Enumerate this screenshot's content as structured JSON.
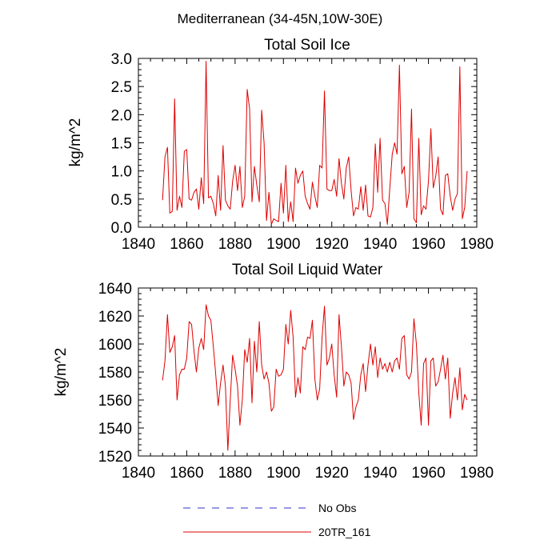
{
  "figure_title": "Mediterranean (34-45N,10W-30E)",
  "legend": [
    {
      "label": "No Obs",
      "color": "#3333cc",
      "style": "dashed"
    },
    {
      "label": "20TR_161",
      "color": "#dd0000",
      "style": "solid"
    }
  ],
  "chart_data": [
    {
      "type": "line",
      "title": "Total Soil Ice",
      "xlabel": "",
      "ylabel": "kg/m^2",
      "xlim": [
        1840,
        1980
      ],
      "ylim": [
        0.0,
        3.0
      ],
      "xticks": [
        1840,
        1860,
        1880,
        1900,
        1920,
        1940,
        1960,
        1980
      ],
      "yticks": [
        0.0,
        0.5,
        1.0,
        1.5,
        2.0,
        2.5,
        3.0
      ],
      "ytick_labels": [
        "0.0",
        "0.5",
        "1.0",
        "1.5",
        "2.0",
        "2.5",
        "3.0"
      ],
      "series": [
        {
          "name": "20TR_161",
          "color": "#dd0000",
          "x_start": 1850,
          "x_step": 1,
          "values": [
            0.48,
            1.25,
            1.42,
            0.25,
            0.28,
            2.28,
            0.3,
            0.55,
            0.35,
            1.35,
            1.38,
            0.5,
            0.48,
            0.62,
            0.68,
            0.32,
            0.88,
            0.42,
            2.95,
            0.52,
            0.55,
            0.42,
            0.2,
            0.92,
            0.3,
            1.45,
            0.48,
            0.38,
            0.32,
            0.82,
            1.1,
            0.65,
            1.08,
            0.35,
            0.55,
            2.45,
            2.1,
            0.45,
            1.08,
            0.75,
            0.45,
            2.08,
            1.5,
            0.12,
            0.62,
            0.05,
            0.15,
            0.12,
            0.1,
            0.78,
            0.25,
            1.1,
            0.1,
            0.45,
            0.1,
            1.05,
            0.78,
            0.92,
            1.0,
            0.55,
            0.42,
            0.32,
            0.8,
            0.55,
            0.35,
            1.1,
            1.05,
            2.42,
            0.68,
            0.65,
            0.65,
            0.85,
            0.55,
            1.22,
            0.78,
            0.5,
            1.05,
            1.25,
            0.65,
            0.2,
            0.35,
            0.32,
            0.72,
            0.3,
            0.75,
            0.2,
            0.18,
            0.35,
            1.48,
            0.62,
            1.58,
            0.48,
            0.42,
            0.05,
            0.68,
            1.3,
            1.5,
            1.3,
            2.88,
            0.95,
            1.08,
            0.35,
            0.62,
            2.1,
            0.15,
            0.08,
            1.58,
            0.22,
            0.38,
            0.32,
            0.82,
            1.75,
            0.7,
            0.9,
            1.25,
            0.32,
            0.22,
            0.92,
            0.95,
            0.55,
            0.3,
            0.5,
            0.6,
            2.85,
            0.15,
            0.35,
            1.0
          ]
        }
      ]
    },
    {
      "type": "line",
      "title": "Total Soil Liquid Water",
      "xlabel": "",
      "ylabel": "kg/m^2",
      "xlim": [
        1840,
        1980
      ],
      "ylim": [
        1520,
        1640
      ],
      "xticks": [
        1840,
        1860,
        1880,
        1900,
        1920,
        1940,
        1960,
        1980
      ],
      "yticks": [
        1520,
        1540,
        1560,
        1580,
        1600,
        1620,
        1640
      ],
      "ytick_labels": [
        "1520",
        "1540",
        "1560",
        "1580",
        "1600",
        "1620",
        "1640"
      ],
      "series": [
        {
          "name": "20TR_161",
          "color": "#dd0000",
          "x_start": 1850,
          "x_step": 1,
          "values": [
            1574,
            1588,
            1621,
            1594,
            1598,
            1606,
            1560,
            1578,
            1582,
            1582,
            1590,
            1616,
            1614,
            1595,
            1580,
            1597,
            1604,
            1596,
            1628,
            1620,
            1617,
            1598,
            1578,
            1556,
            1572,
            1585,
            1570,
            1524,
            1560,
            1592,
            1582,
            1570,
            1542,
            1560,
            1596,
            1587,
            1604,
            1558,
            1602,
            1580,
            1616,
            1585,
            1575,
            1580,
            1572,
            1552,
            1555,
            1582,
            1577,
            1578,
            1582,
            1614,
            1600,
            1624,
            1605,
            1562,
            1576,
            1565,
            1598,
            1596,
            1605,
            1604,
            1617,
            1575,
            1560,
            1568,
            1605,
            1627,
            1585,
            1590,
            1600,
            1578,
            1562,
            1621,
            1598,
            1570,
            1580,
            1578,
            1572,
            1546,
            1555,
            1560,
            1578,
            1586,
            1566,
            1585,
            1600,
            1585,
            1598,
            1576,
            1590,
            1582,
            1586,
            1580,
            1587,
            1580,
            1588,
            1590,
            1582,
            1604,
            1606,
            1578,
            1575,
            1580,
            1618,
            1600,
            1565,
            1542,
            1586,
            1590,
            1542,
            1588,
            1590,
            1570,
            1573,
            1582,
            1592,
            1575,
            1590,
            1547,
            1565,
            1576,
            1560,
            1583,
            1553,
            1564,
            1560
          ]
        }
      ]
    }
  ]
}
